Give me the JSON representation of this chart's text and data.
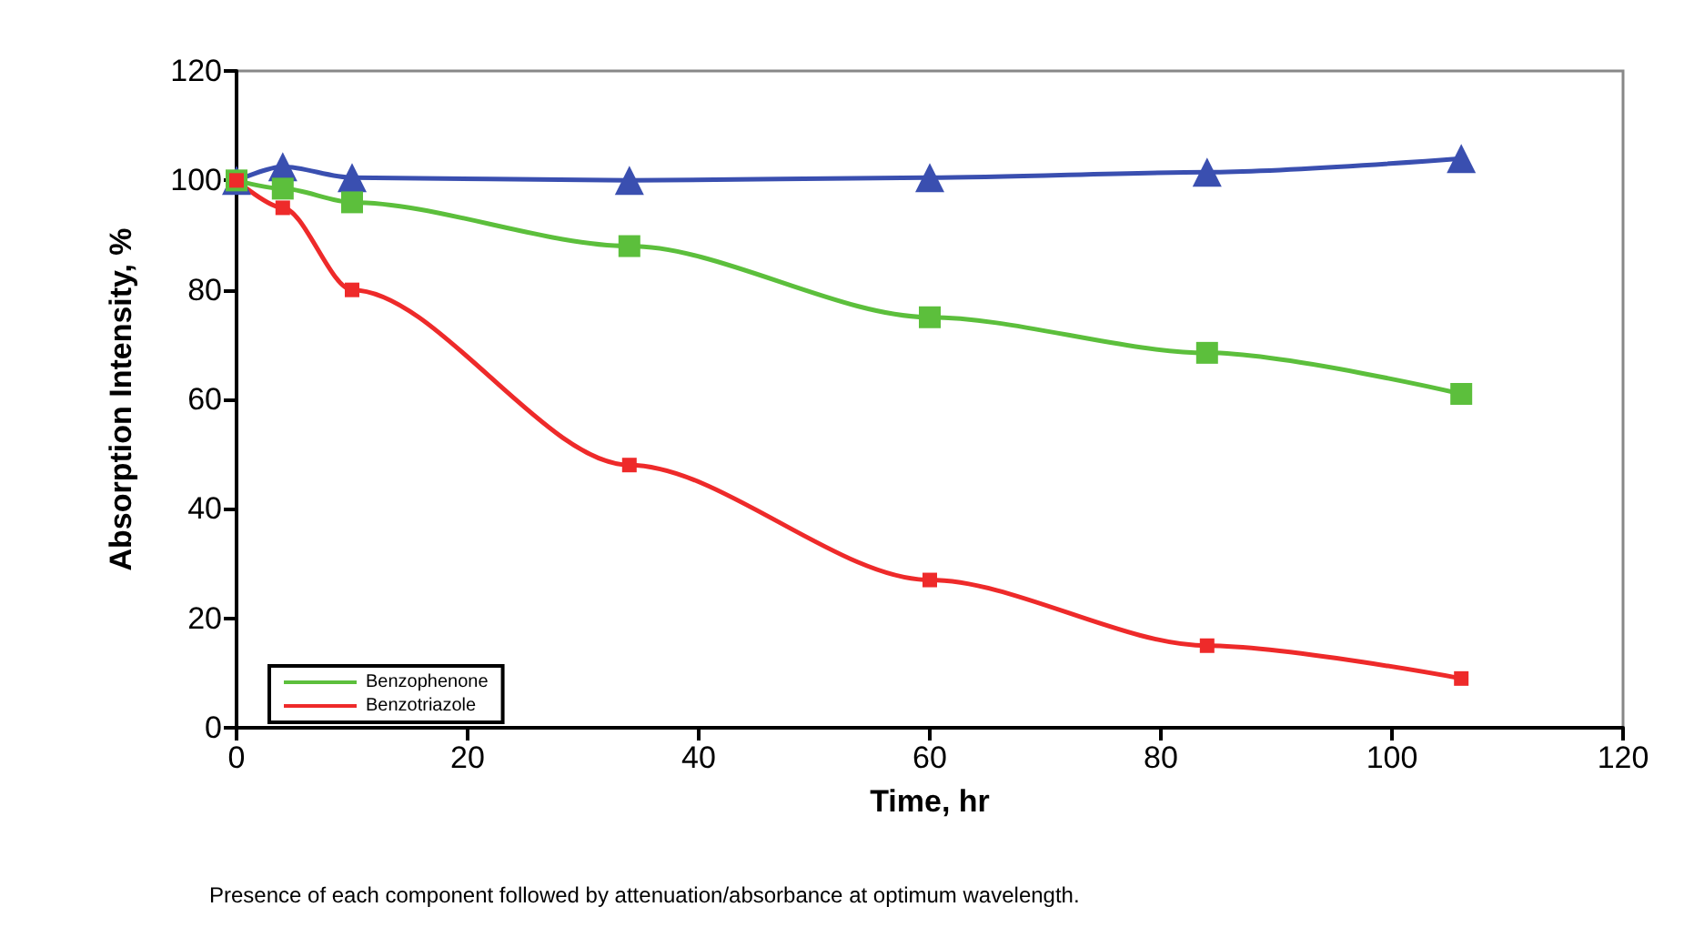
{
  "chart_data": {
    "type": "line",
    "xlabel": "Time, hr",
    "ylabel": "Absorption Intensity, %",
    "x": [
      0,
      4,
      10,
      34,
      60,
      84,
      106
    ],
    "series": [
      {
        "color": "#3a4fb0",
        "marker": "triangle",
        "values": [
          100,
          102.5,
          100.5,
          100,
          100.5,
          101.5,
          104
        ]
      },
      {
        "name": "Benzophenone",
        "color": "#5cbf3c",
        "marker": "square",
        "values": [
          100,
          98.5,
          96,
          88,
          75,
          68.5,
          61
        ]
      },
      {
        "name": "Benzotriazole",
        "color": "#ee2a2a",
        "marker": "square",
        "values": [
          100,
          95,
          80,
          48,
          27,
          15,
          9
        ]
      }
    ],
    "xlim": [
      0,
      120
    ],
    "xticks": [
      0,
      20,
      40,
      60,
      80,
      100,
      120
    ],
    "ylim": [
      0,
      120
    ],
    "yticks": [
      0,
      20,
      40,
      60,
      80,
      100,
      120
    ],
    "grid": false,
    "legend": "bottom left",
    "line_style": "solid",
    "annotations": [
      "Presence of each component followed by attenuation/absorbance at optimum wavelength."
    ]
  }
}
